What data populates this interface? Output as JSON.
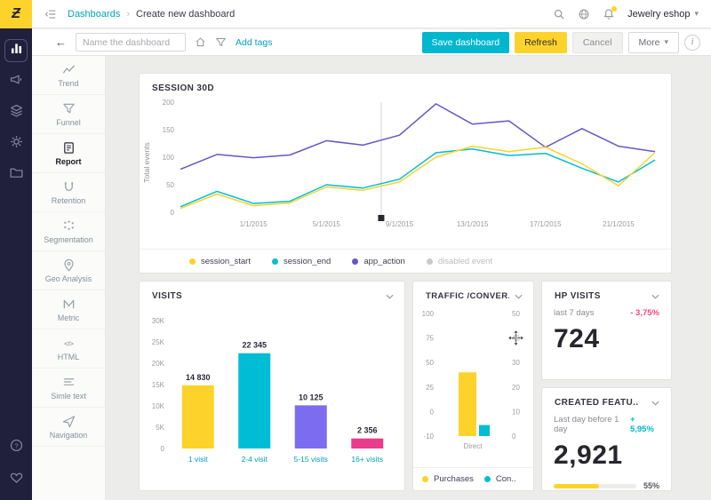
{
  "app": {
    "logo_glyph": "Ƶ",
    "breadcrumb": {
      "section": "Dashboards",
      "separator": "›",
      "page": "Create new dashboard"
    },
    "account_name": "Jewelry eshop"
  },
  "toolbar": {
    "name_input_placeholder": "Name the dashboard",
    "add_tags_label": "Add tags",
    "save_label": "Save dashboard",
    "refresh_label": "Refresh",
    "cancel_label": "Cancel",
    "more_label": "More",
    "info_glyph": "i"
  },
  "rail": {
    "items": [
      {
        "icon": "bar-chart",
        "active": true
      },
      {
        "icon": "megaphone",
        "active": false
      },
      {
        "icon": "layers",
        "active": false
      },
      {
        "icon": "gear",
        "active": false
      },
      {
        "icon": "folder",
        "active": false
      }
    ],
    "bottom": [
      {
        "icon": "question"
      },
      {
        "icon": "heart"
      }
    ]
  },
  "sidebar": {
    "items": [
      {
        "label": "Trend",
        "icon": "trend",
        "active": false
      },
      {
        "label": "Funnel",
        "icon": "funnel",
        "active": false
      },
      {
        "label": "Report",
        "icon": "report",
        "active": true
      },
      {
        "label": "Retention",
        "icon": "retention",
        "active": false
      },
      {
        "label": "Segmentation",
        "icon": "segmentation",
        "active": false
      },
      {
        "label": "Geo Analysis",
        "icon": "geo",
        "active": false
      },
      {
        "label": "Metric",
        "icon": "metric",
        "active": false
      },
      {
        "label": "HTML",
        "icon": "html",
        "active": false
      },
      {
        "label": "Simle text",
        "icon": "text",
        "active": false
      },
      {
        "label": "Navigation",
        "icon": "navigation",
        "active": false
      }
    ]
  },
  "colors": {
    "yellow": "#fdd32b",
    "cyan": "#00bdd6",
    "purple": "#6457c8",
    "bar_purple": "#7b6cf0",
    "pink": "#ea3c8c",
    "teal_link": "#00a4b8"
  },
  "cards": {
    "session": {
      "title": "SESSION 30D"
    },
    "visits": {
      "title": "VISITS"
    },
    "traffic": {
      "title": "TRAFFIC /CONVER.."
    },
    "hp_visits": {
      "title": "HP VISITS",
      "subtitle": "last 7 days",
      "delta": "- 3,75%",
      "delta_color": "#f0487f",
      "value": "724"
    },
    "created": {
      "title": "CREATED FEATU..",
      "subtitle": "Last day before 1 day",
      "delta": "+ 5,95%",
      "delta_color": "#00b7cd",
      "value": "2,921",
      "progress_pct": 55,
      "progress_label": "55%"
    }
  },
  "chart_data": [
    {
      "id": "session30d",
      "type": "line",
      "title": "SESSION 30D",
      "ylabel": "Total events",
      "ylim": [
        0,
        200
      ],
      "yticks": [
        0,
        50,
        100,
        150,
        200
      ],
      "x_tick_labels": [
        "1/1/2015",
        "5/1/2015",
        "9/1/2015",
        "13/1/2015",
        "17/1/2015",
        "21/1/2015"
      ],
      "x_tick_indices": [
        2,
        4,
        6,
        8,
        10,
        12
      ],
      "x_point_count": 14,
      "marker_index": 5.5,
      "series": [
        {
          "name": "app_action",
          "color": "#6457c8",
          "values": [
            78,
            105,
            99,
            104,
            130,
            122,
            140,
            197,
            160,
            166,
            118,
            152,
            120,
            110
          ]
        },
        {
          "name": "session_end",
          "color": "#00bdd6",
          "values": [
            10,
            38,
            16,
            20,
            50,
            44,
            60,
            108,
            115,
            103,
            107,
            80,
            55,
            95
          ]
        },
        {
          "name": "session_start",
          "color": "#fdd32b",
          "values": [
            7,
            33,
            12,
            17,
            46,
            40,
            55,
            100,
            120,
            110,
            118,
            88,
            48,
            108
          ]
        }
      ],
      "legend": [
        {
          "label": "session_start",
          "color": "#fdd32b"
        },
        {
          "label": "session_end",
          "color": "#00bdd6"
        },
        {
          "label": "app_action",
          "color": "#6457c8"
        },
        {
          "label": "disabled event",
          "color": "#c9c9c9",
          "muted": true
        }
      ]
    },
    {
      "id": "visits",
      "type": "bar",
      "title": "VISITS",
      "categories": [
        "1 visit",
        "2-4 visit",
        "5-15 visits",
        "16+ visits"
      ],
      "values": [
        14830,
        22345,
        10125,
        2356
      ],
      "value_labels": [
        "14 830",
        "22 345",
        "10 125",
        "2 356"
      ],
      "colors": [
        "#fdd32b",
        "#00bdd6",
        "#7b6cf0",
        "#ea3c8c"
      ],
      "ylim": [
        0,
        30000
      ],
      "ytick_labels": [
        "0",
        "5K",
        "10K",
        "15K",
        "20K",
        "25K",
        "30K"
      ]
    },
    {
      "id": "traffic_conversions",
      "type": "bar-dual-axis",
      "title": "TRAFFIC /CONVER..",
      "categories": [
        "Direct"
      ],
      "left_ticks": [
        "100",
        "75",
        "50",
        "25",
        "0",
        "-10"
      ],
      "right_ticks": [
        "50",
        "40",
        "30",
        "20",
        "10",
        "0"
      ],
      "series": [
        {
          "name": "Purchases",
          "color": "#fdd32b",
          "height_pct": 52
        },
        {
          "name": "Con..",
          "color": "#00bdd6",
          "height_pct": 9
        }
      ],
      "legend": [
        {
          "label": "Purchases",
          "color": "#fdd32b"
        },
        {
          "label": "Con..",
          "color": "#00bdd6"
        }
      ]
    }
  ]
}
